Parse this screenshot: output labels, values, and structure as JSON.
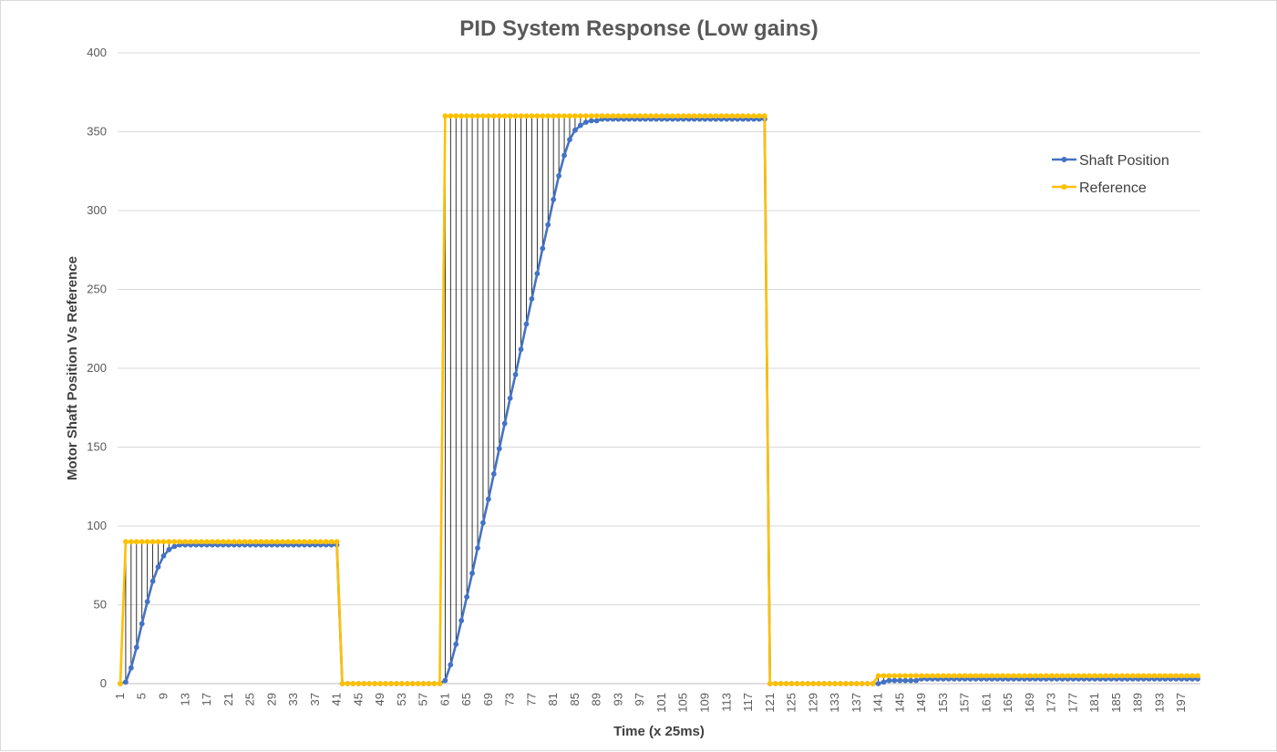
{
  "chart_data": {
    "type": "line",
    "title": "PID System Response (Low gains)",
    "xlabel": "Time (x 25ms)",
    "ylabel": "Motor Shaft Position Vs Reference",
    "ylim": [
      0,
      400
    ],
    "yticks": [
      0,
      50,
      100,
      150,
      200,
      250,
      300,
      350,
      400
    ],
    "xlim": [
      1,
      200
    ],
    "xtick_start": 1,
    "xtick_step": 4,
    "grid": "horizontal",
    "legend_position": "right",
    "drop_lines": true,
    "series": [
      {
        "name": "Shaft Position",
        "color": "#4472c4",
        "values": [
          0,
          1,
          10,
          23,
          38,
          52,
          65,
          74,
          81,
          85,
          87,
          88,
          88,
          88,
          88,
          88,
          88,
          88,
          88,
          88,
          88,
          88,
          88,
          88,
          88,
          88,
          88,
          88,
          88,
          88,
          88,
          88,
          88,
          88,
          88,
          88,
          88,
          88,
          88,
          88,
          88,
          0,
          0,
          0,
          0,
          0,
          0,
          0,
          0,
          0,
          0,
          0,
          0,
          0,
          0,
          0,
          0,
          0,
          0,
          0,
          2,
          12,
          25,
          40,
          55,
          70,
          86,
          102,
          117,
          133,
          149,
          165,
          181,
          196,
          212,
          228,
          244,
          260,
          276,
          291,
          307,
          322,
          335,
          345,
          351,
          354,
          356,
          357,
          357,
          358,
          358,
          358,
          358,
          358,
          358,
          358,
          358,
          358,
          358,
          358,
          358,
          358,
          358,
          358,
          358,
          358,
          358,
          358,
          358,
          358,
          358,
          358,
          358,
          358,
          358,
          358,
          358,
          358,
          358,
          358,
          0,
          0,
          0,
          0,
          0,
          0,
          0,
          0,
          0,
          0,
          0,
          0,
          0,
          0,
          0,
          0,
          0,
          0,
          0,
          0,
          0,
          1,
          2,
          2,
          2,
          2,
          2,
          2,
          3,
          3,
          3,
          3,
          3,
          3,
          3,
          3,
          3,
          3,
          3,
          3,
          3,
          3,
          3,
          3,
          3,
          3,
          3,
          3,
          3,
          3,
          3,
          3,
          3,
          3,
          3,
          3,
          3,
          3,
          3,
          3,
          3,
          3,
          3,
          3,
          3,
          3,
          3,
          3,
          3,
          3,
          3,
          3,
          3,
          3,
          3,
          3,
          3,
          3,
          3,
          3
        ]
      },
      {
        "name": "Reference",
        "color": "#ffc000",
        "values": [
          0,
          90,
          90,
          90,
          90,
          90,
          90,
          90,
          90,
          90,
          90,
          90,
          90,
          90,
          90,
          90,
          90,
          90,
          90,
          90,
          90,
          90,
          90,
          90,
          90,
          90,
          90,
          90,
          90,
          90,
          90,
          90,
          90,
          90,
          90,
          90,
          90,
          90,
          90,
          90,
          90,
          0,
          0,
          0,
          0,
          0,
          0,
          0,
          0,
          0,
          0,
          0,
          0,
          0,
          0,
          0,
          0,
          0,
          0,
          0,
          360,
          360,
          360,
          360,
          360,
          360,
          360,
          360,
          360,
          360,
          360,
          360,
          360,
          360,
          360,
          360,
          360,
          360,
          360,
          360,
          360,
          360,
          360,
          360,
          360,
          360,
          360,
          360,
          360,
          360,
          360,
          360,
          360,
          360,
          360,
          360,
          360,
          360,
          360,
          360,
          360,
          360,
          360,
          360,
          360,
          360,
          360,
          360,
          360,
          360,
          360,
          360,
          360,
          360,
          360,
          360,
          360,
          360,
          360,
          360,
          0,
          0,
          0,
          0,
          0,
          0,
          0,
          0,
          0,
          0,
          0,
          0,
          0,
          0,
          0,
          0,
          0,
          0,
          0,
          0,
          5,
          5,
          5,
          5,
          5,
          5,
          5,
          5,
          5,
          5,
          5,
          5,
          5,
          5,
          5,
          5,
          5,
          5,
          5,
          5,
          5,
          5,
          5,
          5,
          5,
          5,
          5,
          5,
          5,
          5,
          5,
          5,
          5,
          5,
          5,
          5,
          5,
          5,
          5,
          5,
          5,
          5,
          5,
          5,
          5,
          5,
          5,
          5,
          5,
          5,
          5,
          5,
          5,
          5,
          5,
          5,
          5,
          5,
          5,
          5
        ]
      }
    ]
  }
}
